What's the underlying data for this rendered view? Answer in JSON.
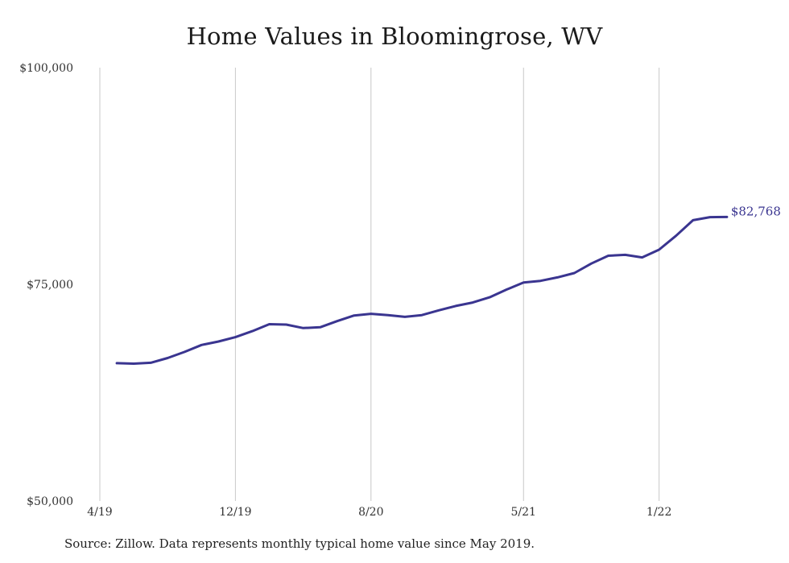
{
  "chart_data": {
    "type": "line",
    "title": "Home Values in Bloomingrose, WV",
    "xlabel": "",
    "ylabel": "",
    "ylim": [
      50000,
      100000
    ],
    "y_ticks": [
      "$50,000",
      "$75,000",
      "$100,000"
    ],
    "y_tick_values": [
      50000,
      75000,
      100000
    ],
    "x_ticks": [
      "4/19",
      "12/19",
      "8/20",
      "5/21",
      "1/22"
    ],
    "x_tick_values": [
      "2019-04",
      "2019-12",
      "2020-08",
      "2021-05",
      "2022-01"
    ],
    "grid": "vertical",
    "color": "#3a3590",
    "end_label": "$82,768",
    "series": [
      {
        "x": [
          "2019-05",
          "2019-06",
          "2019-07",
          "2019-08",
          "2019-09",
          "2019-10",
          "2019-11",
          "2019-12",
          "2020-01",
          "2020-02",
          "2020-03",
          "2020-04",
          "2020-05",
          "2020-06",
          "2020-07",
          "2020-08",
          "2020-09",
          "2020-10",
          "2020-11",
          "2020-12",
          "2021-01",
          "2021-02",
          "2021-03",
          "2021-04",
          "2021-05",
          "2021-06",
          "2021-07",
          "2021-08",
          "2021-09",
          "2021-10",
          "2021-11",
          "2021-12",
          "2022-01",
          "2022-02",
          "2022-03",
          "2022-04",
          "2022-05"
        ],
        "values": [
          65900,
          65850,
          65950,
          66500,
          67200,
          68000,
          68400,
          68900,
          69600,
          70400,
          70350,
          69950,
          70050,
          70750,
          71400,
          71600,
          71450,
          71250,
          71450,
          72000,
          72500,
          72900,
          73500,
          74400,
          75200,
          75400,
          75800,
          76300,
          77400,
          78300,
          78400,
          78100,
          79000,
          80600,
          82400,
          82750,
          82768
        ]
      }
    ],
    "source": "Source: Zillow. Data represents monthly typical home value since May 2019."
  }
}
